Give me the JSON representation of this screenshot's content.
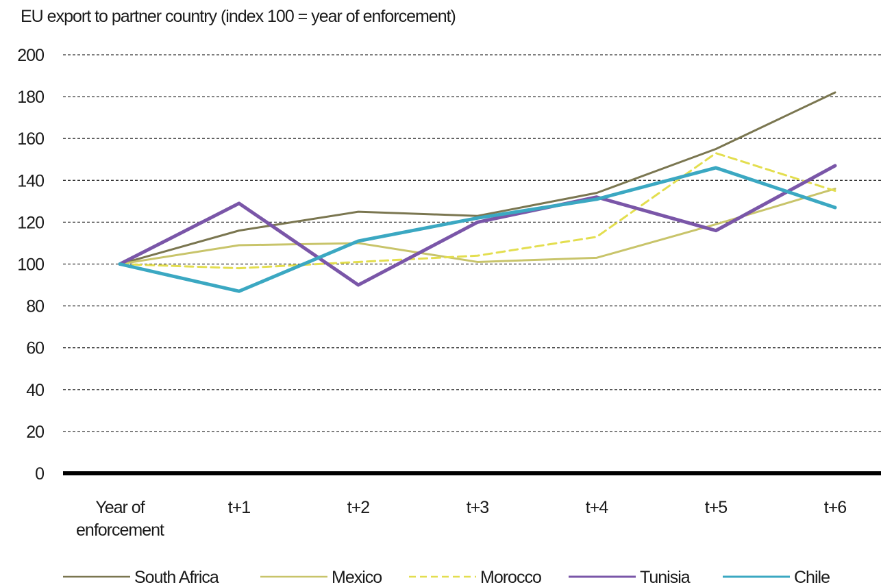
{
  "chart_data": {
    "type": "line",
    "title": "EU export to partner country (index 100 = year of enforcement)",
    "xlabel": "",
    "ylabel": "",
    "categories": [
      "Year of enforcement",
      "t+1",
      "t+2",
      "t+3",
      "t+4",
      "t+5",
      "t+6"
    ],
    "ylim": [
      0,
      200
    ],
    "yticks": [
      0,
      20,
      40,
      60,
      80,
      100,
      120,
      140,
      160,
      180,
      200
    ],
    "grid": true,
    "legend_position": "bottom",
    "series": [
      {
        "name": "South Africa",
        "values": [
          100,
          116,
          125,
          123,
          134,
          155,
          182
        ],
        "color": "#7a7650",
        "dashed": false,
        "width": 3
      },
      {
        "name": "Mexico",
        "values": [
          100,
          109,
          110,
          101,
          103,
          119,
          136
        ],
        "color": "#c8c46a",
        "dashed": false,
        "width": 3
      },
      {
        "name": "Morocco",
        "values": [
          100,
          98,
          101,
          104,
          113,
          153,
          135
        ],
        "color": "#e3de4f",
        "dashed": true,
        "width": 3
      },
      {
        "name": "Tunisia",
        "values": [
          100,
          129,
          90,
          120,
          132,
          116,
          147
        ],
        "color": "#7a56a8",
        "dashed": false,
        "width": 5
      },
      {
        "name": "Chile",
        "values": [
          100,
          87,
          111,
          122,
          131,
          146,
          127
        ],
        "color": "#3ba8c2",
        "dashed": false,
        "width": 5
      }
    ]
  }
}
